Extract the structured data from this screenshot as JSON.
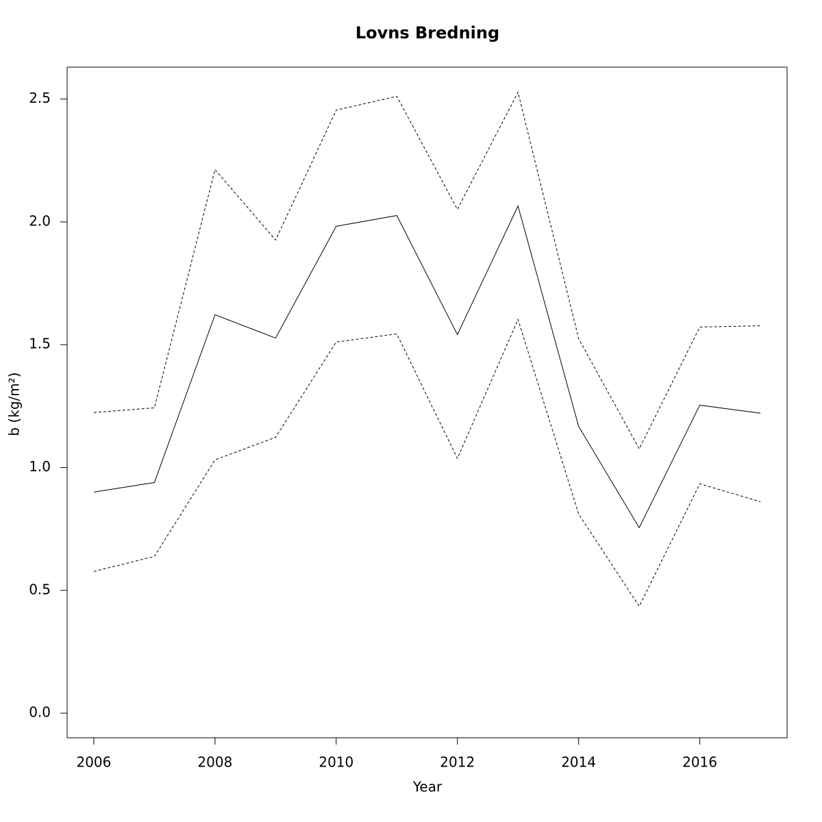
{
  "chart_data": {
    "type": "line",
    "title": "Lovns Bredning",
    "xlabel": "Year",
    "ylabel": "b  (kg/m²)",
    "x": [
      2006,
      2007,
      2008,
      2009,
      2010,
      2011,
      2012,
      2013,
      2014,
      2015,
      2016,
      2017
    ],
    "series": [
      {
        "color": "#000000",
        "dashed": false,
        "values": [
          0.9,
          0.939,
          1.622,
          1.527,
          1.982,
          2.026,
          1.541,
          2.065,
          1.168,
          0.755,
          1.254,
          1.221
        ]
      },
      {
        "color": "#000000",
        "dashed": true,
        "values": [
          1.224,
          1.243,
          2.213,
          1.926,
          2.455,
          2.511,
          2.051,
          2.528,
          1.525,
          1.076,
          1.572,
          1.577
        ]
      },
      {
        "color": "#000000",
        "dashed": true,
        "values": [
          0.577,
          0.638,
          1.031,
          1.123,
          1.511,
          1.544,
          1.037,
          1.603,
          0.811,
          0.435,
          0.934,
          0.861
        ]
      }
    ],
    "xlim": [
      2005.56,
      2017.44
    ],
    "xticks": [
      2006,
      2008,
      2010,
      2012,
      2014,
      2016
    ],
    "ylim": [
      -0.1,
      2.63
    ],
    "yticks": [
      {
        "value": 0,
        "label": "0.0"
      },
      0.5,
      {
        "value": 1,
        "label": "1.0"
      },
      1.5,
      {
        "value": 2,
        "label": "2.0"
      },
      2.5
    ]
  }
}
